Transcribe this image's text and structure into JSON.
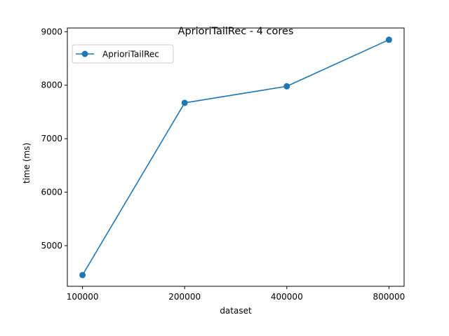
{
  "chart_data": {
    "type": "line",
    "title": "AprioriTailRec - 4 cores",
    "xlabel": "dataset",
    "ylabel": "time (ms)",
    "categories": [
      "100000",
      "200000",
      "400000",
      "800000"
    ],
    "series": [
      {
        "name": "AprioriTailRec",
        "values": [
          4450,
          7670,
          7980,
          8850
        ],
        "color": "#1f77b4",
        "marker": "circle"
      }
    ],
    "ylim": [
      4240,
      9070
    ],
    "yticks": [
      5000,
      6000,
      7000,
      8000,
      9000
    ],
    "grid": false,
    "legend": {
      "position": "top-left"
    }
  }
}
